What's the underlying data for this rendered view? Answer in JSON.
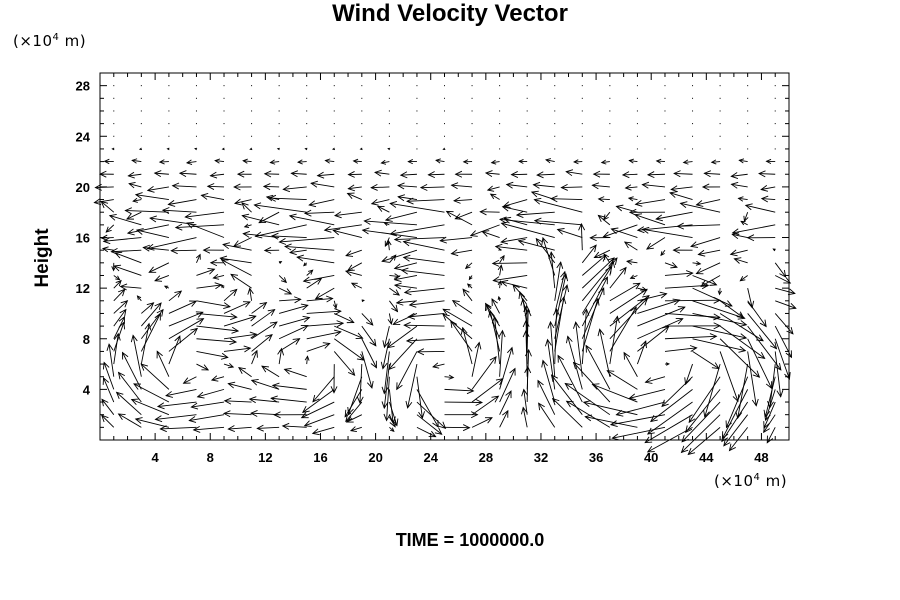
{
  "chart_data": {
    "type": "vector-field",
    "title": "Wind Velocity Vector",
    "xlabel": "",
    "ylabel": "Height",
    "x_unit_prefix": "(×10",
    "x_unit_exp": "4",
    "x_unit_suffix": " m)",
    "y_unit_prefix": "(×10",
    "y_unit_exp": "4",
    "y_unit_suffix": " m)",
    "xlim": [
      0,
      50
    ],
    "ylim": [
      0,
      29
    ],
    "xticks": [
      4,
      8,
      12,
      16,
      20,
      24,
      28,
      32,
      36,
      40,
      44,
      48
    ],
    "yticks": [
      4,
      8,
      12,
      16,
      20,
      24,
      28
    ],
    "grid_spacing": {
      "x": 2,
      "y": 1
    },
    "grid": false,
    "vector_color": "#000000",
    "footer": "TIME = 1000000.0"
  }
}
